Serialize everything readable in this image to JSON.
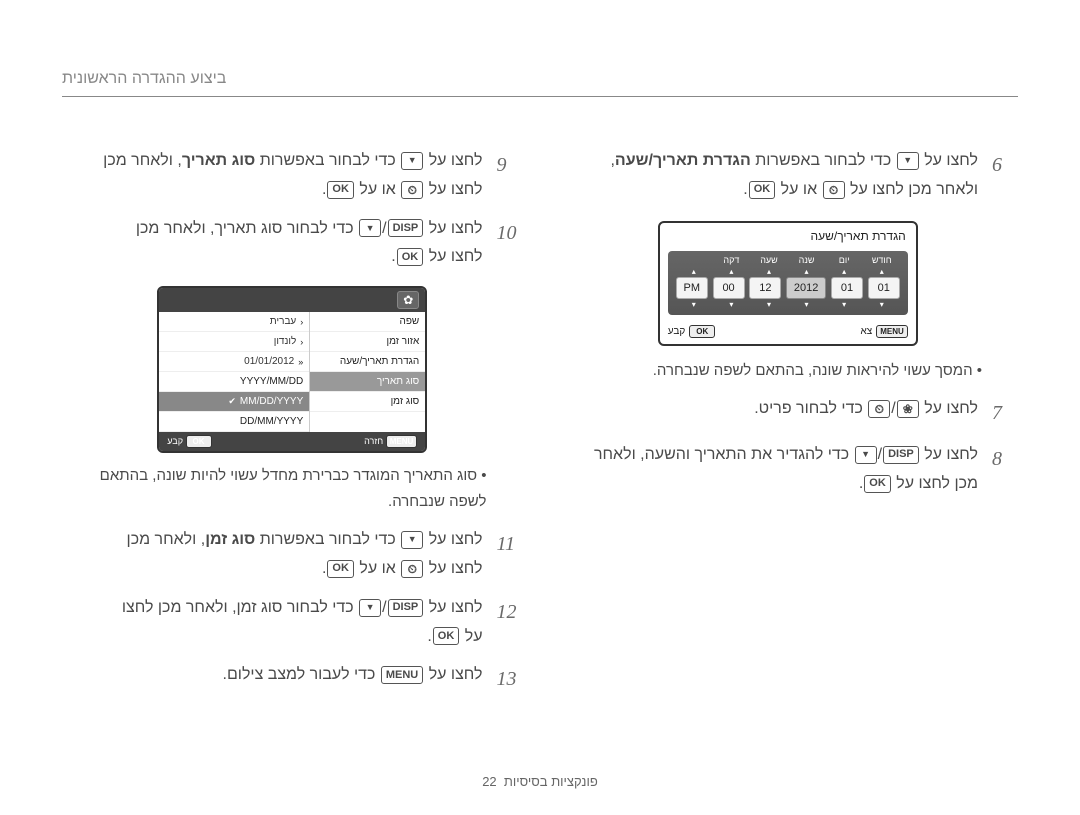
{
  "header": {
    "title": "ביצוע ההגדרה הראשונית"
  },
  "icons": {
    "ok": "OK",
    "disp": "DISP",
    "menu": "MENU"
  },
  "right_col": {
    "step6": {
      "num": "6",
      "t1": "לחצו על ",
      "t2": " כדי לבחור באפשרות ",
      "bold": "הגדרת תאריך/שעה",
      "t3": ",",
      "line2a": "ולאחר מכן לחצו על ",
      "line2b": " או על "
    },
    "dt": {
      "title": "הגדרת תאריך/שעה",
      "labels": [
        "חודש",
        "יום",
        "שנה",
        "שעה",
        "דקה",
        ""
      ],
      "cells": [
        "01",
        "01",
        "2012",
        "12",
        "00",
        "PM"
      ],
      "selected_index": 2,
      "foot_exit": "צא",
      "foot_set": "קבע"
    },
    "note1": "המסך עשוי להיראות שונה, בהתאם לשפה שנבחרה.",
    "step7": {
      "num": "7",
      "t1": "לחצו על ",
      "t2": " כדי לבחור פריט."
    },
    "step8": {
      "num": "8",
      "t1": "לחצו על ",
      "t2": " כדי להגדיר את התאריך והשעה, ולאחר",
      "line2": "מכן לחצו על "
    }
  },
  "left_col": {
    "step9": {
      "num": "9",
      "t1": "לחצו על ",
      "t2": " כדי לבחור באפשרות ",
      "bold": "סוג תאריך",
      "t3": ", ולאחר מכן",
      "line2a": "לחצו על ",
      "line2b": " או על "
    },
    "step10": {
      "num": "10",
      "t1": "לחצו על ",
      "t2": " כדי לבחור סוג תאריך, ולאחר מכן",
      "line2": "לחצו על "
    },
    "menu": {
      "left_rows": [
        {
          "lab": "שפה",
          "val": "עברית",
          "chev": true
        },
        {
          "lab": "אזור זמן",
          "val": "לונדון",
          "chev": true
        },
        {
          "lab": "הגדרת תאריך/שעה",
          "val": "01/01/2012",
          "chev": "dbl"
        },
        {
          "lab": "סוג תאריך",
          "val": "",
          "sel": true
        },
        {
          "lab": "סוג זמן",
          "val": ""
        }
      ],
      "opts": [
        "YYYY/MM/DD",
        "MM/DD/YYYY",
        "DD/MM/YYYY"
      ],
      "sel_opt": 1,
      "foot_back": "חזרה",
      "foot_set": "קבע"
    },
    "note2": "סוג התאריך המוגדר כברירת מחדל עשוי להיות שונה, בהתאם לשפה שנבחרה.",
    "step11": {
      "num": "11",
      "t1": "לחצו על ",
      "t2": " כדי לבחור באפשרות ",
      "bold": "סוג זמן",
      "t3": ", ולאחר מכן",
      "line2a": "לחצו על ",
      "line2b": " או על "
    },
    "step12": {
      "num": "12",
      "t1": "לחצו על ",
      "t2": " כדי לבחור סוג זמן, ולאחר מכן לחצו",
      "line2": "על "
    },
    "step13": {
      "num": "13",
      "t1": "לחצו על ",
      "t2": " כדי לעבור למצב צילום."
    }
  },
  "footer": {
    "text": "פונקציות בסיסיות",
    "page": "22"
  }
}
